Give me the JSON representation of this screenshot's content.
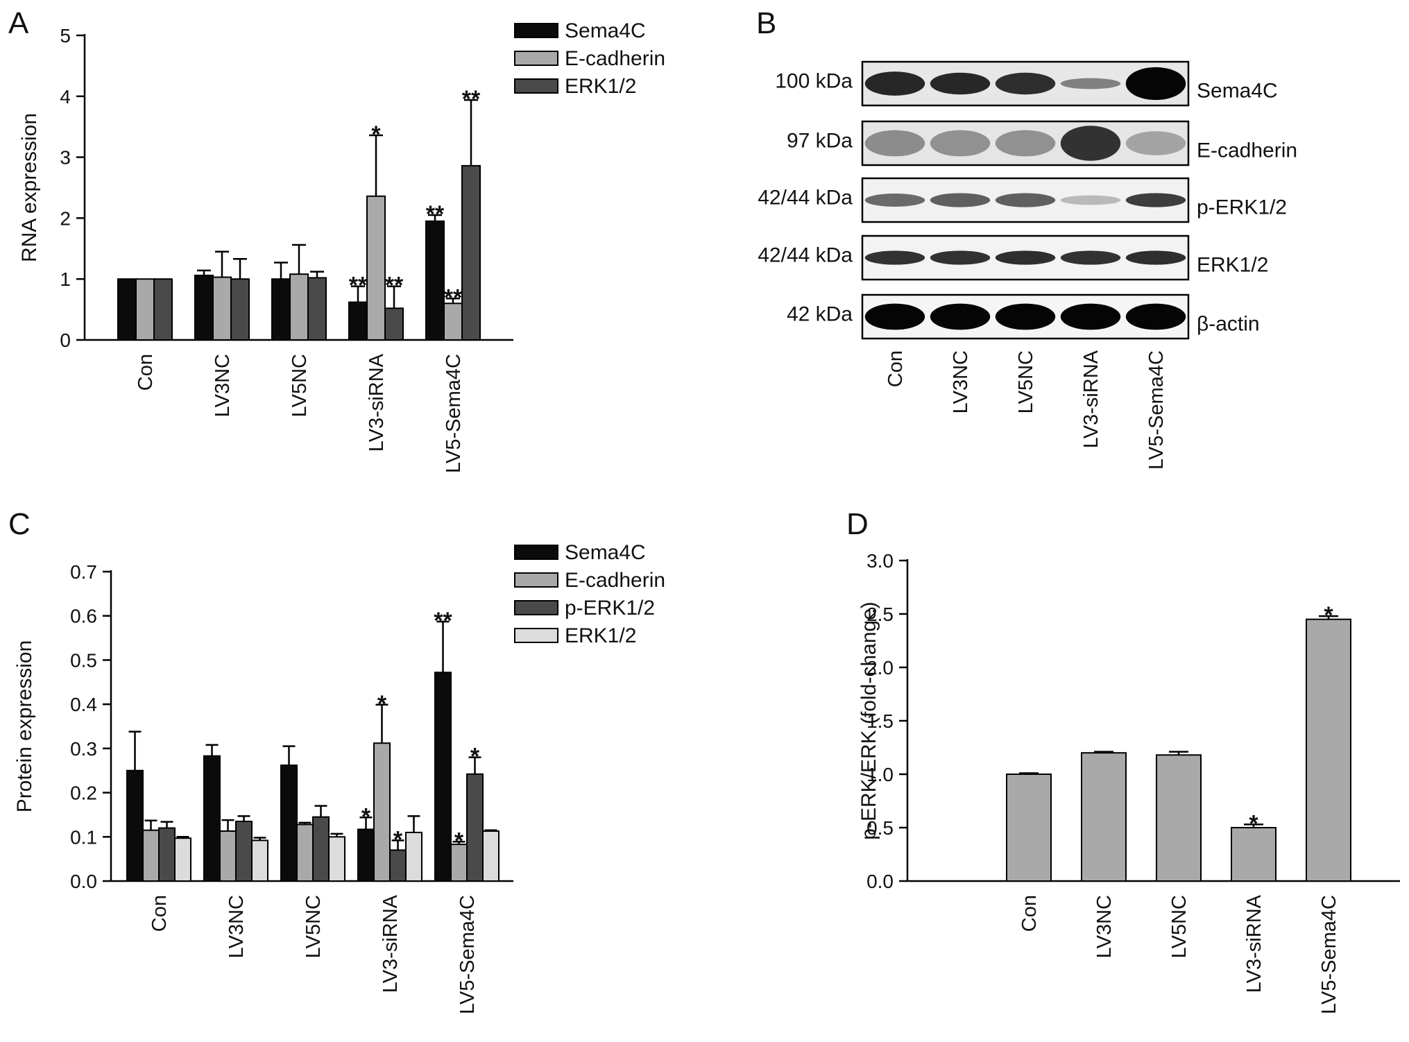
{
  "panels": {
    "A": "A",
    "B": "B",
    "C": "C",
    "D": "D"
  },
  "colors": {
    "Sema4C": "#0b0b0b",
    "E-cadherin": "#a9a9a9",
    "ERK1/2_A": "#4a4a4a",
    "p-ERK1/2": "#4a4a4a",
    "ERK1/2_C": "#dcdcdc",
    "D_bar": "#a9a9a9"
  },
  "chart_data": [
    {
      "panel": "A",
      "type": "bar",
      "categories": [
        "Con",
        "LV3NC",
        "LV5NC",
        "LV3-siRNA",
        "LV5-Sema4C"
      ],
      "ylabel": "RNA expression",
      "xlabel": "",
      "ylim": [
        0,
        5
      ],
      "yticks": [
        0,
        1,
        2,
        3,
        4,
        5
      ],
      "legend_position": "top-right",
      "series": [
        {
          "name": "Sema4C",
          "values": [
            1.0,
            1.06,
            1.0,
            0.62,
            1.95
          ],
          "errors": [
            0.0,
            0.08,
            0.27,
            0.26,
            0.1
          ],
          "sig": [
            "",
            "",
            "",
            "**",
            "**"
          ]
        },
        {
          "name": "E-cadherin",
          "values": [
            1.0,
            1.03,
            1.08,
            2.36,
            0.6
          ],
          "errors": [
            0.0,
            0.42,
            0.48,
            1.0,
            0.08
          ],
          "sig": [
            "",
            "",
            "",
            "*",
            "**"
          ]
        },
        {
          "name": "ERK1/2",
          "values": [
            1.0,
            1.0,
            1.02,
            0.52,
            2.86
          ],
          "errors": [
            0.0,
            0.33,
            0.1,
            0.36,
            1.08
          ],
          "sig": [
            "",
            "",
            "",
            "**",
            "**"
          ]
        }
      ]
    },
    {
      "panel": "C",
      "type": "bar",
      "categories": [
        "Con",
        "LV3NC",
        "LV5NC",
        "LV3-siRNA",
        "LV5-Sema4C"
      ],
      "ylabel": "Protein expression",
      "xlabel": "",
      "ylim": [
        0,
        0.7
      ],
      "yticks": [
        "0.0",
        "0.1",
        "0.2",
        "0.3",
        "0.4",
        "0.5",
        "0.6",
        "0.7"
      ],
      "legend_position": "top-right",
      "series": [
        {
          "name": "Sema4C",
          "values": [
            0.25,
            0.283,
            0.262,
            0.117,
            0.472
          ],
          "errors": [
            0.088,
            0.025,
            0.043,
            0.027,
            0.115
          ],
          "sig": [
            "",
            "",
            "",
            "*",
            "**"
          ]
        },
        {
          "name": "E-cadherin",
          "values": [
            0.115,
            0.113,
            0.128,
            0.312,
            0.083
          ],
          "errors": [
            0.022,
            0.025,
            0.004,
            0.087,
            0.006
          ],
          "sig": [
            "",
            "",
            "",
            "*",
            "*"
          ]
        },
        {
          "name": "p-ERK1/2",
          "values": [
            0.12,
            0.135,
            0.145,
            0.07,
            0.242
          ],
          "errors": [
            0.014,
            0.012,
            0.025,
            0.022,
            0.038
          ],
          "sig": [
            "",
            "",
            "",
            "*",
            "*"
          ]
        },
        {
          "name": "ERK1/2",
          "values": [
            0.097,
            0.092,
            0.1,
            0.11,
            0.113
          ],
          "errors": [
            0.003,
            0.006,
            0.007,
            0.037,
            0.002
          ],
          "sig": [
            "",
            "",
            "",
            "",
            ""
          ]
        }
      ]
    },
    {
      "panel": "D",
      "type": "bar",
      "categories": [
        "Con",
        "LV3NC",
        "LV5NC",
        "LV3-siRNA",
        "LV5-Sema4C"
      ],
      "ylabel": "p-ERK/ERK (fold-change)",
      "xlabel": "",
      "ylim": [
        0,
        3.0
      ],
      "yticks": [
        "0.0",
        "0.5",
        "1.0",
        "1.5",
        "2.0",
        "2.5",
        "3.0"
      ],
      "series": [
        {
          "values": [
            1.0,
            1.2,
            1.18,
            0.5,
            2.45
          ],
          "errors": [
            0.01,
            0.01,
            0.03,
            0.03,
            0.03
          ],
          "sig": [
            "",
            "",
            "",
            "*",
            "*"
          ]
        }
      ]
    }
  ],
  "blot": {
    "rows": [
      {
        "kda": "100 kDa",
        "name": "Sema4C",
        "bands": [
          0.85,
          0.85,
          0.82,
          0.45,
          1.0
        ],
        "thickness": [
          0.55,
          0.5,
          0.5,
          0.25,
          0.75
        ],
        "bg": 0.2
      },
      {
        "kda": "97 kDa",
        "name": "E-cadherin",
        "bands": [
          0.4,
          0.38,
          0.38,
          0.8,
          0.3
        ],
        "thickness": [
          0.6,
          0.6,
          0.6,
          0.8,
          0.55
        ],
        "bg": 0.22
      },
      {
        "kda": "42/44 kDa",
        "name": "p-ERK1/2",
        "bands": [
          0.55,
          0.6,
          0.6,
          0.2,
          0.75
        ],
        "thickness": [
          0.3,
          0.32,
          0.32,
          0.22,
          0.32
        ],
        "bg": 0.12
      },
      {
        "kda": "42/44 kDa",
        "name": "ERK1/2",
        "bands": [
          0.8,
          0.8,
          0.82,
          0.8,
          0.82
        ],
        "thickness": [
          0.32,
          0.32,
          0.32,
          0.32,
          0.32
        ],
        "bg": 0.1
      },
      {
        "kda": "42 kDa",
        "name": "β-actin",
        "bands": [
          1.0,
          1.0,
          1.0,
          1.0,
          1.0
        ],
        "thickness": [
          0.6,
          0.6,
          0.6,
          0.6,
          0.6
        ],
        "bg": 0.08
      }
    ],
    "lanes": [
      "Con",
      "LV3NC",
      "LV5NC",
      "LV3-siRNA",
      "LV5-Sema4C"
    ]
  }
}
